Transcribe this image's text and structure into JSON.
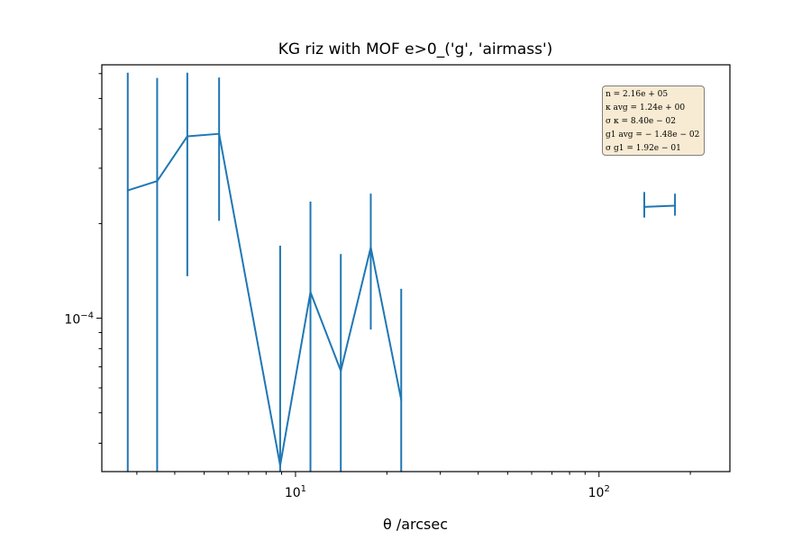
{
  "chart_data": {
    "type": "line",
    "title": "KG riz with MOF e>0_('g', 'airmass')",
    "xlabel": "θ /arcsec",
    "ylabel": "",
    "xscale": "log",
    "yscale": "log",
    "xlim": [
      2.3,
      270
    ],
    "ylim": [
      3.25e-05,
      0.00064
    ],
    "grid": false,
    "xticks": [
      {
        "value": 10,
        "label": "10^1"
      },
      {
        "value": 100,
        "label": "10^2"
      }
    ],
    "yticks": [
      {
        "value": 0.0001,
        "label": "10^-4"
      }
    ],
    "line_color": "#1f77b4",
    "series": [
      {
        "x": [
          2.8,
          3.5,
          4.4,
          5.6,
          8.9,
          11.2,
          14.1,
          17.7,
          22.3,
          141,
          178
        ],
        "y": [
          0.000255,
          0.000273,
          0.000379,
          0.000386,
          3.4e-05,
          0.000121,
          6.8e-05,
          0.000168,
          5.5e-05,
          0.000226,
          0.000228
        ],
        "err_high": [
          0.000604,
          0.000581,
          0.000604,
          0.000583,
          0.00017,
          0.000235,
          0.00016,
          0.000249,
          0.000124,
          0.000252,
          0.000249
        ],
        "err_low": [
          3.25e-05,
          3.25e-05,
          0.000136,
          0.000204,
          3.25e-05,
          3.25e-05,
          3.25e-05,
          9.2e-05,
          3.25e-05,
          0.000209,
          0.000212
        ]
      }
    ],
    "stats_box": {
      "position": "top-right",
      "lines": [
        "n = 2.16e + 05",
        "κ avg = 1.24e + 00",
        "σ κ = 8.40e − 02",
        "g1 avg = − 1.48e − 02",
        "σ g1 = 1.92e − 01"
      ]
    }
  }
}
